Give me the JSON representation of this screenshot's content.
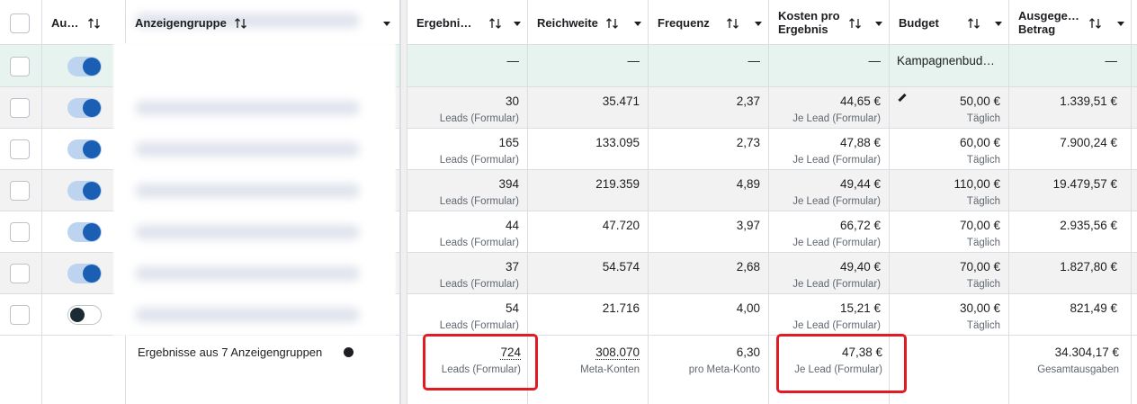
{
  "header": {
    "columns": [
      "Au…",
      "Anzeigengruppe",
      "Ergebni…",
      "Reichweite",
      "Frequenz",
      "Kosten pro Ergebnis",
      "Budget",
      "Ausgege… Betrag"
    ]
  },
  "campaign_row": {
    "results": "—",
    "reach": "—",
    "frequency": "—",
    "cost": "—",
    "budget": "Kampagnenbud…",
    "spent": "—"
  },
  "rows": [
    {
      "active": true,
      "results": "30",
      "results_label": "Leads (Formular)",
      "reach": "35.471",
      "frequency": "2,37",
      "cost": "44,65 €",
      "cost_label": "Je Lead (Formular)",
      "budget": "50,00 €",
      "budget_label": "Täglich",
      "spent": "1.339,51 €"
    },
    {
      "active": true,
      "results": "165",
      "results_label": "Leads (Formular)",
      "reach": "133.095",
      "frequency": "2,73",
      "cost": "47,88 €",
      "cost_label": "Je Lead (Formular)",
      "budget": "60,00 €",
      "budget_label": "Täglich",
      "spent": "7.900,24 €"
    },
    {
      "active": true,
      "results": "394",
      "results_label": "Leads (Formular)",
      "reach": "219.359",
      "frequency": "4,89",
      "cost": "49,44 €",
      "cost_label": "Je Lead (Formular)",
      "budget": "110,00 €",
      "budget_label": "Täglich",
      "spent": "19.479,57 €"
    },
    {
      "active": true,
      "results": "44",
      "results_label": "Leads (Formular)",
      "reach": "47.720",
      "frequency": "3,97",
      "cost": "66,72 €",
      "cost_label": "Je Lead (Formular)",
      "budget": "70,00 €",
      "budget_label": "Täglich",
      "spent": "2.935,56 €"
    },
    {
      "active": true,
      "results": "37",
      "results_label": "Leads (Formular)",
      "reach": "54.574",
      "frequency": "2,68",
      "cost": "49,40 €",
      "cost_label": "Je Lead (Formular)",
      "budget": "70,00 €",
      "budget_label": "Täglich",
      "spent": "1.827,80 €"
    },
    {
      "active": false,
      "results": "54",
      "results_label": "Leads (Formular)",
      "reach": "21.716",
      "frequency": "4,00",
      "cost": "15,21 €",
      "cost_label": "Je Lead (Formular)",
      "budget": "30,00 €",
      "budget_label": "Täglich",
      "spent": "821,49 €"
    }
  ],
  "summary": {
    "label": "Ergebnisse aus 7 Anzeigengruppen",
    "results": "724",
    "results_label": "Leads (Formular)",
    "reach": "308.070",
    "reach_label": "Meta-Konten",
    "frequency": "6,30",
    "frequency_label": "pro Meta-Konto",
    "cost": "47,38 €",
    "cost_label": "Je Lead (Formular)",
    "spent": "34.304,17 €",
    "spent_label": "Gesamtausgaben"
  }
}
